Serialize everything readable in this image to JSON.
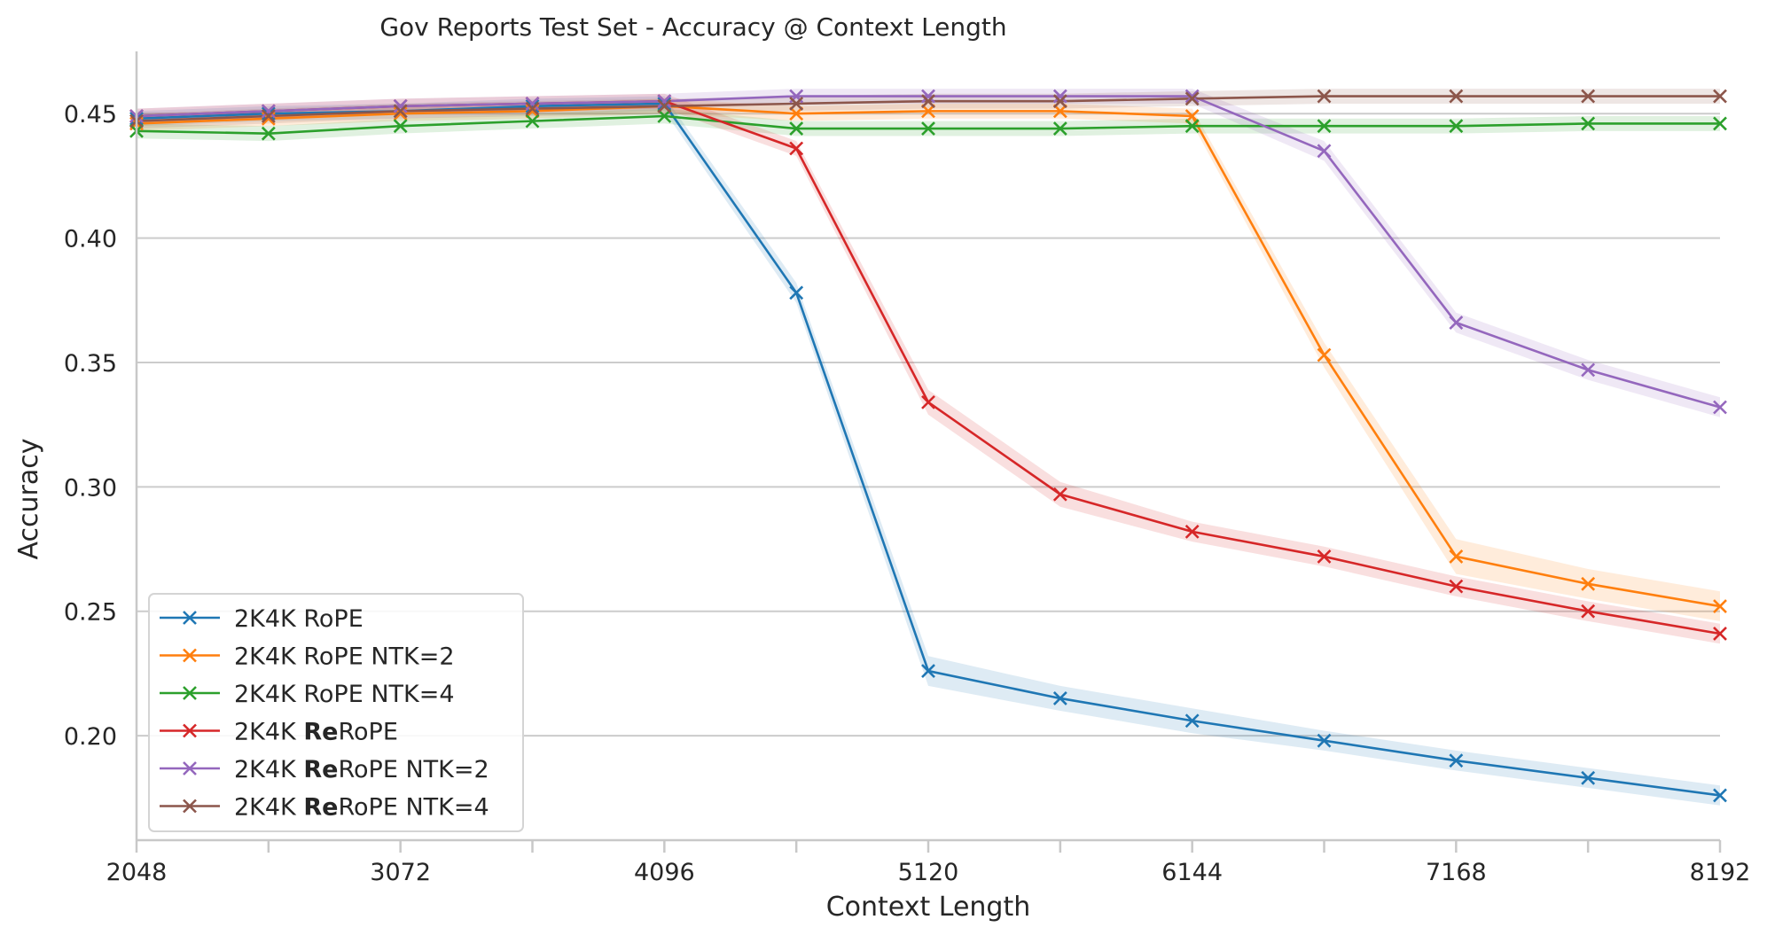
{
  "chart_data": {
    "type": "line",
    "title": "Gov Reports Test Set - Accuracy @ Context Length",
    "xlabel": "Context Length",
    "ylabel": "Accuracy",
    "xlim": [
      2048,
      8192
    ],
    "ylim": [
      0.158,
      0.475
    ],
    "x_ticks": [
      2048,
      3072,
      4096,
      5120,
      6144,
      7168,
      8192
    ],
    "x_minor_ticks": [
      2560,
      3584,
      4608,
      5632,
      6656,
      7680
    ],
    "y_ticks": [
      0.2,
      0.25,
      0.3,
      0.35,
      0.4,
      0.45
    ],
    "y_tick_labels": [
      "0.20",
      "0.25",
      "0.30",
      "0.35",
      "0.40",
      "0.45"
    ],
    "grid": "horizontal",
    "legend_position": "lower-left",
    "x": [
      2048,
      2560,
      3072,
      3584,
      4096,
      4608,
      5120,
      5632,
      6144,
      6656,
      7168,
      7680,
      8192
    ],
    "series": [
      {
        "name": "2K4K RoPE",
        "legend_parts": [
          {
            "text": "2K4K RoPE",
            "bold": false
          }
        ],
        "color": "#1f77b4",
        "values": [
          0.448,
          0.45,
          0.451,
          0.453,
          0.454,
          0.378,
          0.226,
          0.215,
          0.206,
          0.198,
          0.19,
          0.183,
          0.176
        ],
        "band": [
          0.003,
          0.003,
          0.003,
          0.003,
          0.003,
          0.004,
          0.006,
          0.005,
          0.005,
          0.004,
          0.004,
          0.004,
          0.004
        ]
      },
      {
        "name": "2K4K RoPE NTK=2",
        "legend_parts": [
          {
            "text": "2K4K RoPE NTK=2",
            "bold": false
          }
        ],
        "color": "#ff7f0e",
        "values": [
          0.446,
          0.448,
          0.45,
          0.451,
          0.453,
          0.45,
          0.451,
          0.451,
          0.449,
          0.353,
          0.272,
          0.261,
          0.252
        ],
        "band": [
          0.003,
          0.003,
          0.003,
          0.003,
          0.003,
          0.003,
          0.003,
          0.003,
          0.003,
          0.005,
          0.007,
          0.006,
          0.006
        ]
      },
      {
        "name": "2K4K RoPE NTK=4",
        "legend_parts": [
          {
            "text": "2K4K RoPE NTK=4",
            "bold": false
          }
        ],
        "color": "#2ca02c",
        "values": [
          0.443,
          0.442,
          0.445,
          0.447,
          0.449,
          0.444,
          0.444,
          0.444,
          0.445,
          0.445,
          0.445,
          0.446,
          0.446
        ],
        "band": [
          0.003,
          0.003,
          0.003,
          0.003,
          0.003,
          0.003,
          0.003,
          0.003,
          0.003,
          0.003,
          0.003,
          0.003,
          0.003
        ]
      },
      {
        "name": "2K4K ReRoPE",
        "legend_parts": [
          {
            "text": "2K4K ",
            "bold": false
          },
          {
            "text": "Re",
            "bold": true
          },
          {
            "text": "RoPE",
            "bold": false
          }
        ],
        "color": "#d62728",
        "values": [
          0.449,
          0.451,
          0.453,
          0.454,
          0.455,
          0.436,
          0.334,
          0.297,
          0.282,
          0.272,
          0.26,
          0.25,
          0.241
        ],
        "band": [
          0.003,
          0.003,
          0.003,
          0.003,
          0.003,
          0.003,
          0.005,
          0.005,
          0.004,
          0.004,
          0.004,
          0.004,
          0.004
        ]
      },
      {
        "name": "2K4K ReRoPE NTK=2",
        "legend_parts": [
          {
            "text": "2K4K ",
            "bold": false
          },
          {
            "text": "Re",
            "bold": true
          },
          {
            "text": "RoPE NTK=2",
            "bold": false
          }
        ],
        "color": "#9467bd",
        "values": [
          0.449,
          0.451,
          0.453,
          0.454,
          0.455,
          0.457,
          0.457,
          0.457,
          0.457,
          0.435,
          0.366,
          0.347,
          0.332
        ],
        "band": [
          0.003,
          0.003,
          0.003,
          0.003,
          0.003,
          0.003,
          0.003,
          0.003,
          0.003,
          0.004,
          0.004,
          0.004,
          0.004
        ]
      },
      {
        "name": "2K4K ReRoPE NTK=4",
        "legend_parts": [
          {
            "text": "2K4K ",
            "bold": false
          },
          {
            "text": "Re",
            "bold": true
          },
          {
            "text": "RoPE NTK=4",
            "bold": false
          }
        ],
        "color": "#8c564b",
        "values": [
          0.447,
          0.449,
          0.451,
          0.452,
          0.453,
          0.454,
          0.455,
          0.455,
          0.456,
          0.457,
          0.457,
          0.457,
          0.457
        ],
        "band": [
          0.003,
          0.003,
          0.003,
          0.003,
          0.003,
          0.003,
          0.003,
          0.003,
          0.003,
          0.003,
          0.003,
          0.003,
          0.003
        ]
      }
    ]
  }
}
